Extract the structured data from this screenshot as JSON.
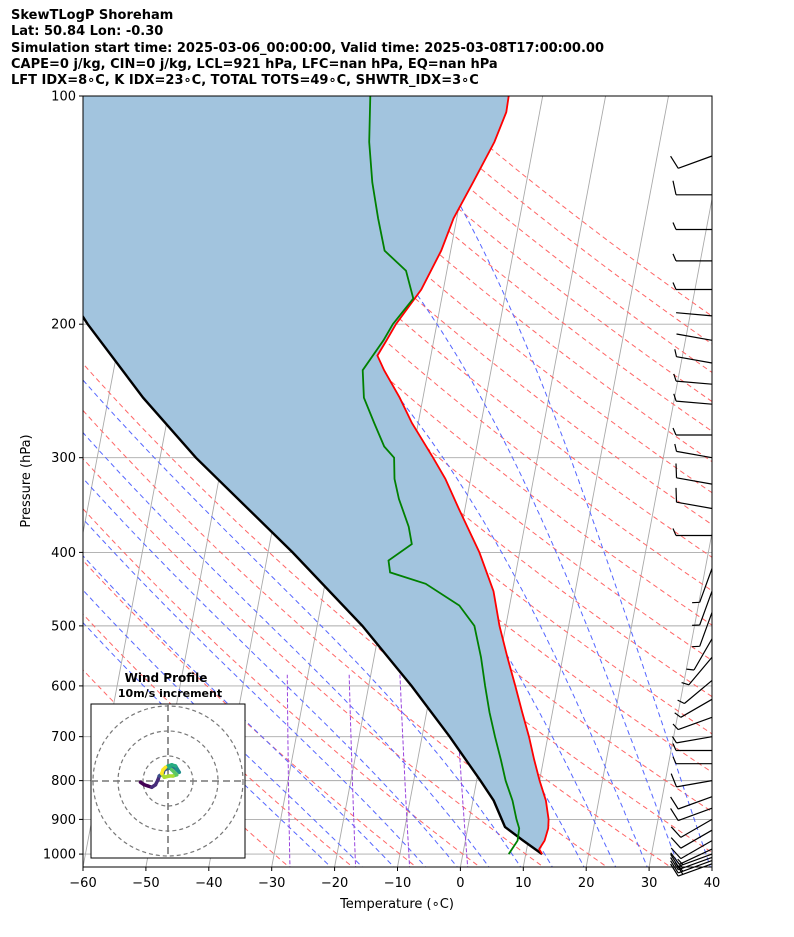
{
  "header": {
    "line1": "SkewTLogP Shoreham",
    "line2": "Lat: 50.84   Lon: -0.30",
    "line3": "Simulation start time: 2025-03-06_00:00:00, Valid time: 2025-03-08T17:00:00.00",
    "line4": "CAPE=0 j/kg, CIN=0 j/kg, LCL=921 hPa, LFC=nan hPa, EQ=nan hPa",
    "line5": "LFT IDX=8∘C, K IDX=23∘C, TOTAL TOTS=49∘C, SHWTR_IDX=3∘C"
  },
  "colors": {
    "temperature": "#ff0000",
    "dewpoint": "#008000",
    "parcel": "#000000",
    "cape_fill": "#a2c4de",
    "dry_adiabat": "#ff6666",
    "moist_adiabat": "#5566ff",
    "mixing_ratio": "#9944dd",
    "isotherm": "#aaaaaa"
  },
  "chart_data": {
    "type": "skewt",
    "xlabel": "Temperature (∘C)",
    "ylabel": "Pressure (hPa)",
    "xlim": [
      -60,
      40
    ],
    "ylim": [
      1040,
      100
    ],
    "x_ticks": [
      "−60",
      "−50",
      "−40",
      "−30",
      "−20",
      "−10",
      "0",
      "10",
      "20",
      "30",
      "40"
    ],
    "y_ticks": [
      "1000",
      "900",
      "800",
      "700",
      "600",
      "500",
      "400",
      "300",
      "200",
      "100"
    ],
    "grid": true,
    "temperature_profile": [
      [
        1000,
        12.6
      ],
      [
        985,
        12.0
      ],
      [
        960,
        12.6
      ],
      [
        925,
        12.8
      ],
      [
        900,
        12.6
      ],
      [
        850,
        11.6
      ],
      [
        800,
        10.0
      ],
      [
        750,
        8.5
      ],
      [
        700,
        7.0
      ],
      [
        650,
        5.2
      ],
      [
        600,
        3.3
      ],
      [
        550,
        1.2
      ],
      [
        500,
        -1.0
      ],
      [
        450,
        -3.0
      ],
      [
        400,
        -6.4
      ],
      [
        350,
        -11.0
      ],
      [
        320,
        -14.0
      ],
      [
        300,
        -16.6
      ],
      [
        270,
        -21.0
      ],
      [
        250,
        -23.7
      ],
      [
        230,
        -27.0
      ],
      [
        220,
        -28.5
      ],
      [
        210,
        -27.5
      ],
      [
        200,
        -26.5
      ],
      [
        180,
        -23.5
      ],
      [
        160,
        -21.5
      ],
      [
        145,
        -20.5
      ],
      [
        130,
        -18.5
      ],
      [
        115,
        -16.3
      ],
      [
        105,
        -15.3
      ],
      [
        100,
        -15.4
      ]
    ],
    "dewpoint_profile": [
      [
        1000,
        7.3
      ],
      [
        960,
        8.3
      ],
      [
        925,
        8.2
      ],
      [
        900,
        7.5
      ],
      [
        850,
        6.3
      ],
      [
        800,
        4.6
      ],
      [
        750,
        3.2
      ],
      [
        700,
        1.6
      ],
      [
        650,
        0.0
      ],
      [
        600,
        -1.5
      ],
      [
        550,
        -3.0
      ],
      [
        500,
        -5.0
      ],
      [
        470,
        -8.0
      ],
      [
        440,
        -14.0
      ],
      [
        425,
        -20.0
      ],
      [
        410,
        -20.6
      ],
      [
        390,
        -17.4
      ],
      [
        370,
        -18.4
      ],
      [
        340,
        -20.8
      ],
      [
        320,
        -22.1
      ],
      [
        300,
        -22.8
      ],
      [
        290,
        -24.7
      ],
      [
        270,
        -27.0
      ],
      [
        250,
        -29.4
      ],
      [
        230,
        -30.4
      ],
      [
        210,
        -28.0
      ],
      [
        200,
        -27.0
      ],
      [
        185,
        -24.5
      ],
      [
        170,
        -26.5
      ],
      [
        160,
        -30.5
      ],
      [
        145,
        -32.5
      ],
      [
        130,
        -34.5
      ],
      [
        115,
        -36.2
      ],
      [
        100,
        -37.4
      ]
    ],
    "parcel_profile": [
      [
        1000,
        12.6
      ],
      [
        960,
        9.2
      ],
      [
        921,
        5.9
      ],
      [
        850,
        3.3
      ],
      [
        800,
        0.6
      ],
      [
        700,
        -5.6
      ],
      [
        600,
        -13.2
      ],
      [
        500,
        -22.8
      ],
      [
        400,
        -36.1
      ],
      [
        300,
        -54.3
      ],
      [
        250,
        -64.5
      ],
      [
        200,
        -75.5
      ],
      [
        150,
        -88.0
      ],
      [
        100,
        -103.0
      ]
    ],
    "wind_barbs": {
      "units": "m/s",
      "pressures": [
        1030,
        1020,
        1010,
        1000,
        985,
        960,
        930,
        900,
        870,
        840,
        800,
        760,
        730,
        700,
        660,
        625,
        590,
        550,
        520,
        480,
        450,
        420,
        380,
        350,
        325,
        300,
        280,
        255,
        240,
        225,
        210,
        195,
        180,
        165,
        150,
        135,
        120
      ],
      "directions": [
        250,
        250,
        250,
        250,
        245,
        240,
        240,
        240,
        250,
        250,
        260,
        270,
        270,
        260,
        250,
        240,
        230,
        220,
        210,
        200,
        200,
        200,
        270,
        280,
        280,
        280,
        270,
        275,
        275,
        280,
        280,
        275,
        270,
        270,
        270,
        270,
        250
      ],
      "speeds": [
        20,
        18,
        16,
        15,
        14,
        12,
        11,
        10,
        12,
        12,
        10,
        9,
        9,
        8,
        7,
        6,
        6,
        6,
        6,
        6,
        6,
        6,
        8,
        10,
        10,
        9,
        7,
        6,
        5,
        5,
        4,
        4,
        6,
        7,
        9,
        10,
        12
      ]
    },
    "hodograph": {
      "title": "Wind Profile",
      "subtitle": "10m/s increment",
      "ring_spacing_ms": 10,
      "u": [
        -11.0,
        -9.5,
        -8.0,
        -6.5,
        -5.0,
        -4.0,
        -3.5,
        -2.0,
        -1.5,
        0.0,
        1.0,
        2.5,
        3.5,
        4.5,
        3.0,
        1.5,
        0.0,
        1.5,
        2.5,
        3.5,
        2.0,
        0.5,
        -1.5,
        -2.5,
        -2.0,
        -1.0
      ],
      "v": [
        -0.5,
        -1.5,
        -2.0,
        -2.5,
        -1.5,
        0.5,
        2.0,
        3.0,
        4.5,
        5.0,
        5.5,
        5.5,
        4.5,
        3.5,
        6.0,
        6.5,
        6.0,
        4.5,
        3.5,
        2.5,
        2.0,
        2.0,
        1.5,
        3.0,
        4.5,
        5.5
      ]
    }
  }
}
